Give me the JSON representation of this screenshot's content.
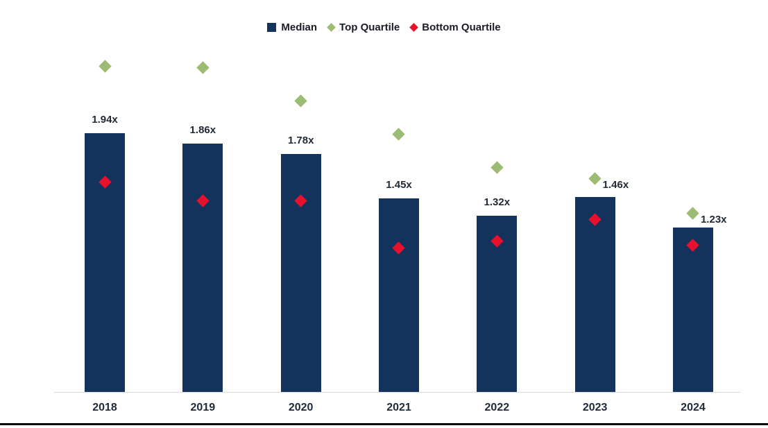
{
  "chart_data": {
    "type": "bar",
    "subtype": "combo-bar-scatter",
    "title": "",
    "xlabel": "",
    "ylabel": "",
    "categories": [
      "2018",
      "2019",
      "2020",
      "2021",
      "2022",
      "2023",
      "2024"
    ],
    "series": [
      {
        "name": "Median",
        "type": "bar",
        "marker": "square",
        "color": "#13335C",
        "values": [
          1.94,
          1.86,
          1.78,
          1.45,
          1.32,
          1.46,
          1.23
        ],
        "data_labels": [
          "1.94x",
          "1.86x",
          "1.78x",
          "1.45x",
          "1.32x",
          "1.46x",
          "1.23x"
        ]
      },
      {
        "name": "Top Quartile",
        "type": "scatter",
        "marker": "diamond",
        "color": "#9CBB73",
        "values": [
          2.44,
          2.43,
          2.18,
          1.93,
          1.68,
          1.6,
          1.34
        ]
      },
      {
        "name": "Bottom Quartile",
        "type": "scatter",
        "marker": "diamond",
        "color": "#E8112D",
        "values": [
          1.57,
          1.43,
          1.43,
          1.08,
          1.13,
          1.29,
          1.1
        ]
      }
    ],
    "ylim": [
      0,
      2.6
    ],
    "gridlines": false,
    "legend_position": "top-center",
    "value_suffix": "x",
    "data_label_placement": [
      "above",
      "above",
      "above",
      "above",
      "above",
      "beside",
      "beside"
    ],
    "colors": {
      "axis_line": "#D9D9D9",
      "bottom_rule": "#000000",
      "value_label": "#222A33",
      "category_label": "#1F2A38",
      "legend_text": "#1A1D28"
    }
  }
}
